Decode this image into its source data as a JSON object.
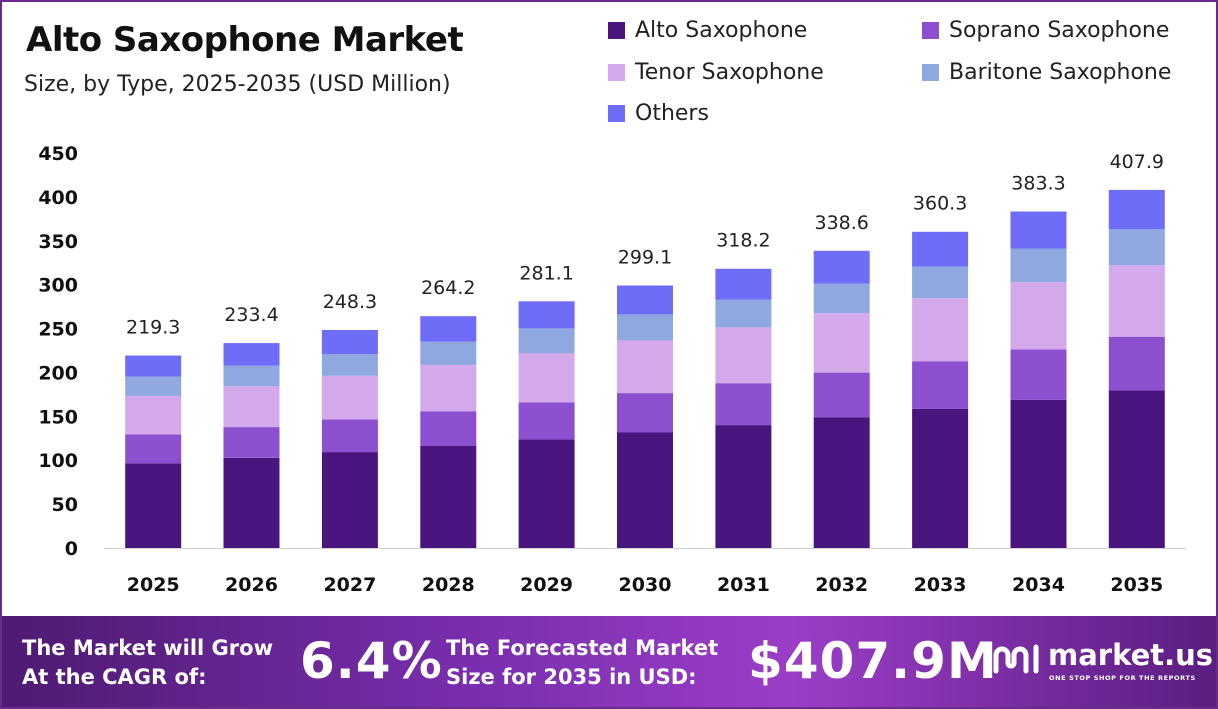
{
  "header": {
    "title": "Alto Saxophone Market",
    "subtitle": "Size, by Type, 2025-2035 (USD Million)"
  },
  "legend": [
    {
      "label": "Alto Saxophone",
      "color": "#4b1580"
    },
    {
      "label": "Soprano Saxophone",
      "color": "#8b4fcf"
    },
    {
      "label": "Tenor Saxophone",
      "color": "#d4a9ec"
    },
    {
      "label": "Baritone Saxophone",
      "color": "#8fa8e0"
    },
    {
      "label": "Others",
      "color": "#6f6cf7"
    }
  ],
  "chart_data": {
    "type": "bar",
    "stacked": true,
    "categories": [
      "2025",
      "2026",
      "2027",
      "2028",
      "2029",
      "2030",
      "2031",
      "2032",
      "2033",
      "2034",
      "2035"
    ],
    "totals": [
      219.3,
      233.4,
      248.3,
      264.2,
      281.1,
      299.1,
      318.2,
      338.6,
      360.3,
      383.3,
      407.9
    ],
    "series": [
      {
        "name": "Alto Saxophone",
        "color": "#4b1580",
        "values": [
          96.5,
          102.7,
          109.3,
          116.2,
          123.7,
          131.6,
          140.0,
          149.0,
          158.5,
          168.7,
          179.5
        ]
      },
      {
        "name": "Soprano Saxophone",
        "color": "#8b4fcf",
        "values": [
          32.9,
          35.0,
          37.2,
          39.6,
          42.2,
          44.9,
          47.7,
          50.8,
          54.0,
          57.5,
          61.2
        ]
      },
      {
        "name": "Tenor Saxophone",
        "color": "#d4a9ec",
        "values": [
          43.9,
          46.7,
          49.7,
          52.8,
          56.2,
          59.8,
          63.6,
          67.7,
          72.1,
          76.7,
          81.6
        ]
      },
      {
        "name": "Baritone Saxophone",
        "color": "#8fa8e0",
        "values": [
          21.9,
          23.3,
          24.8,
          26.4,
          28.1,
          29.9,
          31.8,
          33.9,
          36.0,
          38.3,
          40.8
        ]
      },
      {
        "name": "Others",
        "color": "#6f6cf7",
        "values": [
          24.1,
          25.7,
          27.3,
          29.1,
          30.9,
          32.9,
          35.0,
          37.2,
          39.6,
          42.2,
          44.9
        ]
      }
    ],
    "yticks": [
      0,
      50,
      100,
      150,
      200,
      250,
      300,
      350,
      400,
      450
    ],
    "ylim": [
      0,
      450
    ],
    "grid": false,
    "legend_position": "top-right"
  },
  "banner": {
    "cagr_label_line1": "The Market will Grow",
    "cagr_label_line2": "At the CAGR of:",
    "cagr_value": "6.4%",
    "forecast_label_line1": "The Forecasted Market",
    "forecast_label_line2": "Size for 2035 in USD:",
    "forecast_value": "$407.9M",
    "brand_name": "market.us",
    "brand_tagline": "ONE STOP SHOP FOR THE REPORTS"
  }
}
